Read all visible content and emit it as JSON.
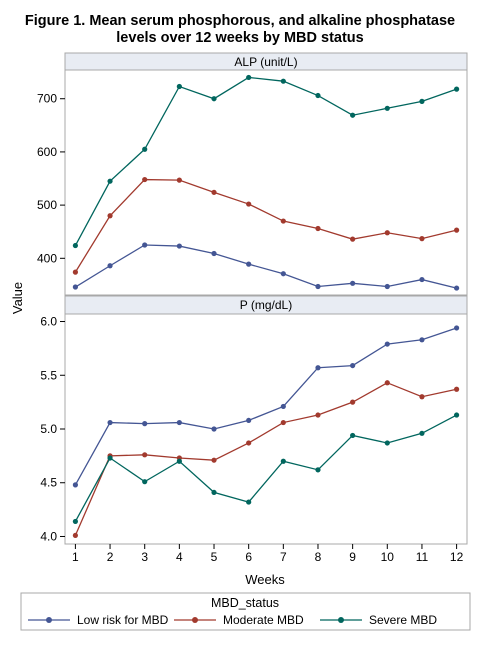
{
  "chart_data": {
    "type": "line",
    "title_line1": "Figure 1. Mean serum phosphorous, and alkaline phosphatase",
    "title_line2": "levels over 12 weeks by MBD status",
    "xlabel": "Weeks",
    "ylabel": "Value",
    "x": [
      1,
      2,
      3,
      4,
      5,
      6,
      7,
      8,
      9,
      10,
      11,
      12
    ],
    "xlim": [
      0.7,
      12.3
    ],
    "grid": false,
    "legend_title": "MBD_status",
    "legend_position": "bottom",
    "series_styles": [
      {
        "name": "Low risk for MBD",
        "color": "#445694"
      },
      {
        "name": "Moderate MBD",
        "color": "#A23A2E"
      },
      {
        "name": "Severe MBD",
        "color": "#01665E"
      }
    ],
    "panels": [
      {
        "label": "ALP (unit/L)",
        "ylim": [
          331,
          754
        ],
        "yticks": [
          400,
          500,
          600,
          700
        ],
        "series": [
          {
            "name": "Low risk for MBD",
            "values": [
              346,
              386,
              425,
              423,
              409,
              389,
              371,
              347,
              353,
              347,
              360,
              344
            ]
          },
          {
            "name": "Moderate MBD",
            "values": [
              374,
              480,
              548,
              547,
              524,
              502,
              470,
              456,
              436,
              448,
              437,
              453
            ]
          },
          {
            "name": "Severe MBD",
            "values": [
              424,
              545,
              605,
              723,
              700,
              740,
              733,
              706,
              669,
              682,
              695,
              718
            ]
          }
        ]
      },
      {
        "label": "P (mg/dL)",
        "ylim": [
          3.93,
          6.07
        ],
        "yticks": [
          "4.0",
          "4.5",
          "5.0",
          "5.5",
          "6.0"
        ],
        "series": [
          {
            "name": "Low risk for MBD",
            "values": [
              4.48,
              5.06,
              5.05,
              5.06,
              5.0,
              5.08,
              5.21,
              5.57,
              5.59,
              5.79,
              5.83,
              5.94
            ]
          },
          {
            "name": "Moderate MBD",
            "values": [
              4.01,
              4.75,
              4.76,
              4.73,
              4.71,
              4.87,
              5.06,
              5.13,
              5.25,
              5.43,
              5.3,
              5.37
            ]
          },
          {
            "name": "Severe MBD",
            "values": [
              4.14,
              4.73,
              4.51,
              4.7,
              4.41,
              4.32,
              4.7,
              4.62,
              4.94,
              4.87,
              4.96,
              5.13
            ]
          }
        ]
      }
    ]
  }
}
